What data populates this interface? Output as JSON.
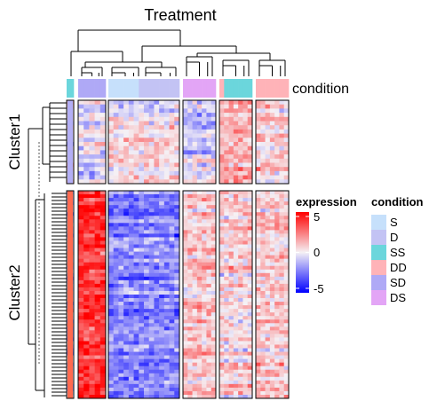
{
  "chart_data": {
    "type": "heatmap",
    "title": "Treatment",
    "row_titles": [
      "Cluster1",
      "Cluster2"
    ],
    "column_annotation_label": "condition",
    "color_scale": {
      "title": "expression",
      "breaks": [
        -5,
        0,
        5
      ],
      "labels": [
        "-5",
        "0",
        "5"
      ],
      "colors": {
        "low": "#0000ff",
        "mid": "#f5f1f5",
        "high": "#ff0000"
      }
    },
    "condition_legend": {
      "title": "condition",
      "items": [
        {
          "label": "S",
          "color": "#c6e0fb"
        },
        {
          "label": "D",
          "color": "#c3c3f4"
        },
        {
          "label": "SS",
          "color": "#6bd6dc"
        },
        {
          "label": "DD",
          "color": "#ffb3b8"
        },
        {
          "label": "SD",
          "color": "#afa9f6"
        },
        {
          "label": "DS",
          "color": "#e3a5f6"
        }
      ]
    },
    "column_groups": [
      {
        "id": 1,
        "annotation": [
          "SS"
        ]
      },
      {
        "id": 2,
        "annotation": [
          "SD",
          "SD",
          "SD",
          "SD",
          "SD"
        ]
      },
      {
        "id": 3,
        "annotation": [
          "S",
          "S",
          "S",
          "S",
          "S",
          "S",
          "D",
          "D",
          "D",
          "D",
          "D",
          "D",
          "D",
          "D"
        ]
      },
      {
        "id": 4,
        "annotation": [
          "DS",
          "DS",
          "DS",
          "DS",
          "DS",
          "DS",
          "DS"
        ]
      },
      {
        "id": 5,
        "annotation": [
          "DD",
          "SS",
          "SS",
          "SS",
          "SS",
          "SS",
          "SS"
        ]
      },
      {
        "id": 6,
        "annotation": [
          "DD",
          "DD",
          "DD",
          "DD",
          "DD",
          "DD",
          "DD"
        ]
      }
    ],
    "row_clusters": [
      {
        "name": "Cluster1",
        "rows": 20,
        "group_means": [
          0.0,
          -0.3,
          0.2,
          -0.8,
          1.2,
          0.6
        ]
      },
      {
        "name": "Cluster2",
        "rows": 58,
        "group_means": [
          -0.5,
          4.0,
          -2.2,
          1.0,
          0.6,
          0.9
        ]
      }
    ]
  }
}
